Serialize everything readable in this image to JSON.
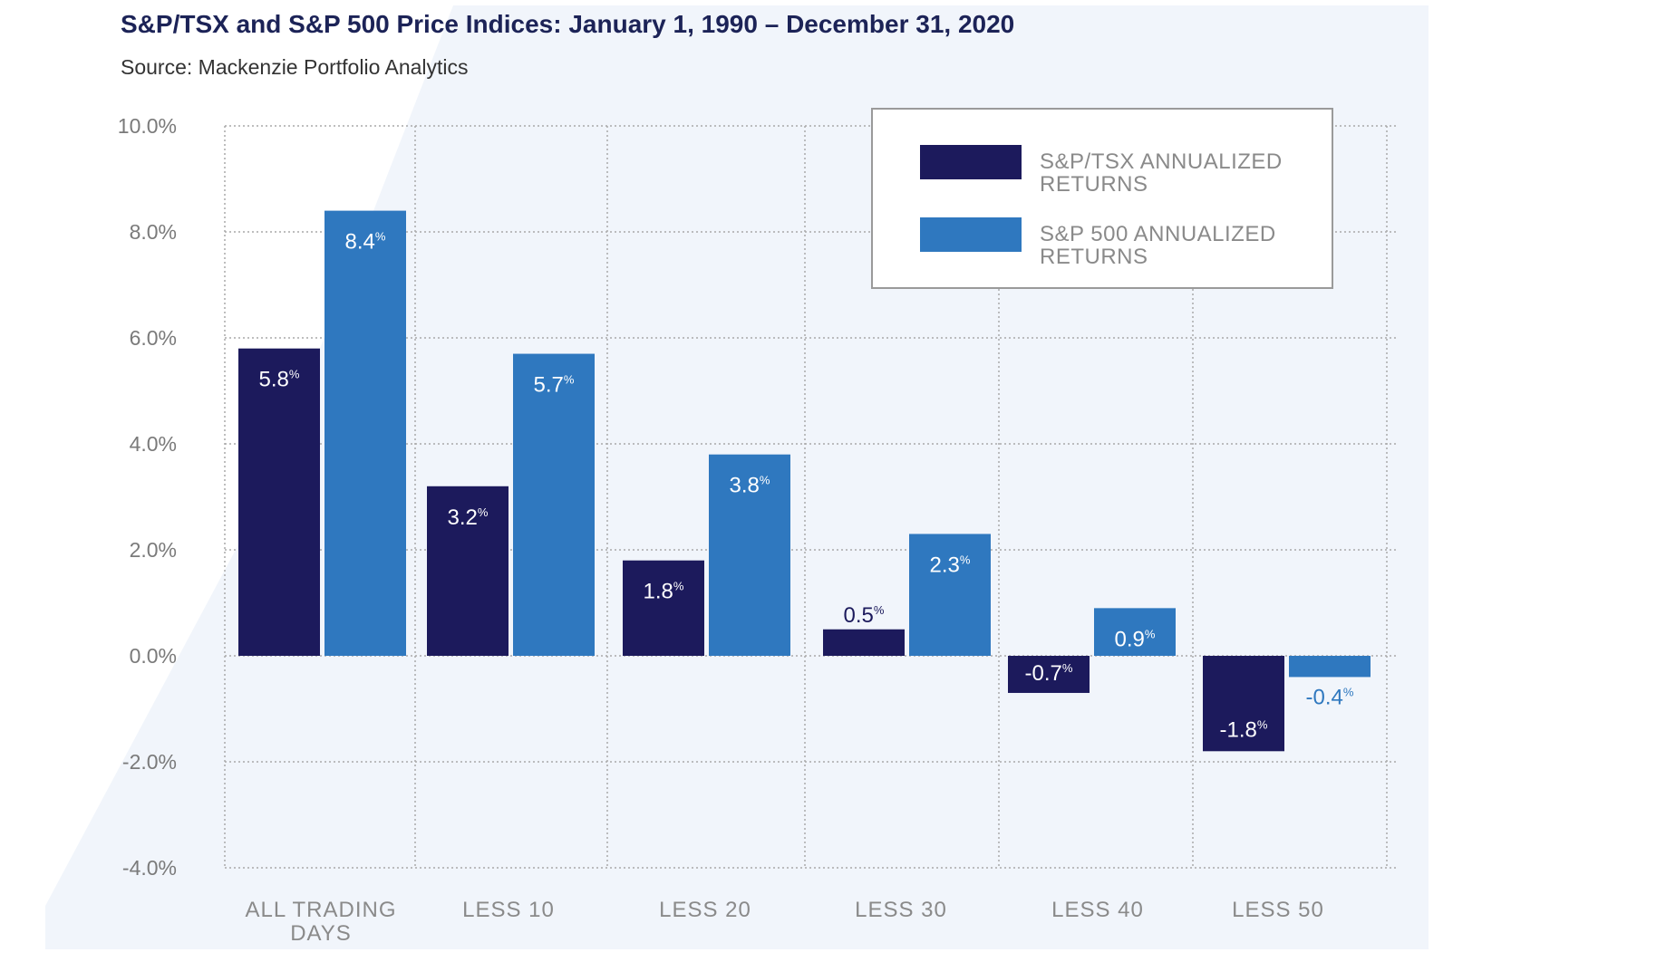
{
  "chart_data": {
    "type": "bar",
    "title": "S&P/TSX and S&P 500 Price Indices: January 1, 1990 – December 31, 2020",
    "subtitle": "Source: Mackenzie Portfolio Analytics",
    "categories": [
      [
        "ALL TRADING",
        "DAYS"
      ],
      [
        "LESS 10"
      ],
      [
        "LESS 20"
      ],
      [
        "LESS 30"
      ],
      [
        "LESS 40"
      ],
      [
        "LESS 50"
      ]
    ],
    "series": [
      {
        "name": "S&P/TSX ANNUALIZED RETURNS",
        "legend_lines": [
          "S&P/TSX ANNUALIZED",
          "RETURNS"
        ],
        "color": "#1c1a5c",
        "values": [
          5.8,
          3.2,
          1.8,
          0.5,
          -0.7,
          -1.8
        ],
        "labels": [
          "5.8",
          "3.2",
          "1.8",
          "0.5",
          "-0.7",
          "-1.8"
        ]
      },
      {
        "name": "S&P 500 ANNUALIZED RETURNS",
        "legend_lines": [
          "S&P 500 ANNUALIZED",
          "RETURNS"
        ],
        "color": "#2f78bf",
        "values": [
          8.4,
          5.7,
          3.8,
          2.3,
          0.9,
          -0.4
        ],
        "labels": [
          "8.4",
          "5.7",
          "3.8",
          "2.3",
          "0.9",
          "-0.4"
        ]
      }
    ],
    "label_unit": "%",
    "yticks": [
      "10.0%",
      "8.0%",
      "6.0%",
      "4.0%",
      "2.0%",
      "0.0%",
      "-2.0%",
      "-4.0%"
    ],
    "ylim": [
      -4,
      10
    ],
    "grid": true,
    "legend_position": "top-right"
  }
}
